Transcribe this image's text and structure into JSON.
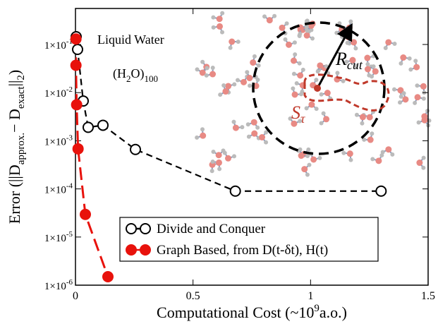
{
  "chart_data": {
    "type": "line",
    "log_y": true,
    "xlabel": [
      "Computational Cost (~10",
      "9",
      "a.o.)"
    ],
    "ylabel": [
      "Error (||D",
      "approx.",
      "− D",
      "exact",
      "||",
      "2",
      ")"
    ],
    "annotations": {
      "system": "Liquid Water",
      "formula": [
        "(H",
        "2",
        "O)",
        "100"
      ],
      "radius": [
        "R",
        "cut"
      ],
      "subgraph": [
        "S",
        "τ"
      ]
    },
    "xlim": [
      0,
      1.5
    ],
    "xticks": [
      0,
      0.5,
      1,
      1.5
    ],
    "ylim": [
      1e-06,
      0.56
    ],
    "yticks": [
      {
        "value": 0.1,
        "label": "1×10",
        "exponent": "-1"
      },
      {
        "value": 0.01,
        "label": "1×10",
        "exponent": "-2"
      },
      {
        "value": 0.001,
        "label": "1×10",
        "exponent": "-3"
      },
      {
        "value": 0.0001,
        "label": "1×10",
        "exponent": "-4"
      },
      {
        "value": 1e-05,
        "label": "1×10",
        "exponent": "-5"
      },
      {
        "value": 1e-06,
        "label": "1×10",
        "exponent": "-6"
      }
    ],
    "series": [
      {
        "name": "Divide and Conquer",
        "color": "#000000",
        "marker": "hollow",
        "x": [
          0.003,
          0.009,
          0.033,
          0.054,
          0.117,
          0.255,
          0.68,
          1.3
        ],
        "values": [
          0.145,
          0.079,
          0.0067,
          0.0019,
          0.0021,
          0.00066,
          9e-05,
          9e-05
        ]
      },
      {
        "name": "Graph Based, from D(t-δt), H(t)",
        "color": "#e8120c",
        "marker": "filled",
        "x": [
          0.002,
          0.002,
          0.005,
          0.011,
          0.042,
          0.138
        ],
        "values": [
          0.13,
          0.037,
          0.0056,
          0.00068,
          2.95e-05,
          1.5e-06
        ]
      }
    ]
  }
}
